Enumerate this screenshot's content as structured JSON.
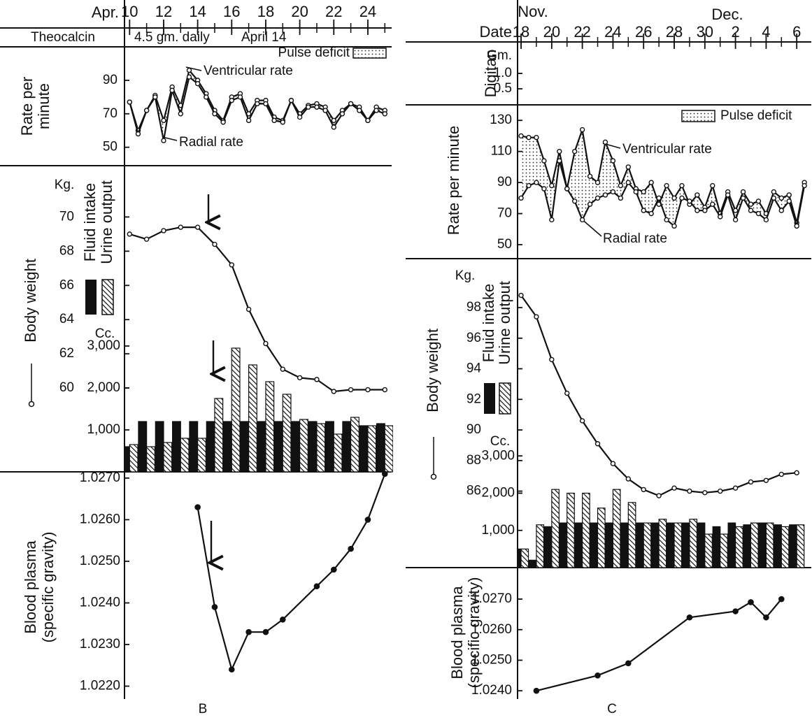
{
  "chart_data": [
    {
      "type": "panel",
      "label": "B",
      "x_title": "Apr.",
      "xlim": [
        9.7,
        25.4
      ],
      "xticks": [
        10,
        12,
        14,
        16,
        18,
        20,
        22,
        24
      ],
      "treatment": {
        "title": "Theocalcin",
        "dose": "4.5 gm. daily",
        "start": "April 14"
      },
      "rate": {
        "type": "line",
        "title": [
          "Rate per",
          "minute"
        ],
        "ylim": [
          39,
          110
        ],
        "yticks": [
          50,
          70,
          90
        ],
        "legend": "Pulse deficit",
        "x": [
          10,
          10.5,
          11,
          11.5,
          12,
          12.5,
          13,
          13.5,
          14,
          14.5,
          15,
          15.5,
          16,
          16.5,
          17,
          17.5,
          18,
          18.5,
          19,
          19.5,
          20,
          20.5,
          21,
          21.5,
          22,
          22.5,
          23,
          23.5,
          24,
          24.5,
          25
        ],
        "series": [
          {
            "name": "Ventricular rate",
            "color": "#111111",
            "values": [
              77,
              60,
              72,
              81,
              66,
              86,
              75,
              96,
              90,
              82,
              72,
              66,
              80,
              82,
              70,
              78,
              78,
              68,
              66,
              78,
              70,
              75,
              76,
              74,
              66,
              72,
              76,
              74,
              66,
              74,
              72
            ]
          },
          {
            "name": "Radial rate",
            "color": "#111111",
            "values": [
              77,
              58,
              72,
              80,
              54,
              84,
              70,
              92,
              88,
              80,
              70,
              65,
              78,
              80,
              66,
              76,
              76,
              66,
              65,
              78,
              68,
              74,
              74,
              72,
              62,
              70,
              76,
              72,
              66,
              72,
              70
            ]
          }
        ]
      },
      "weight": {
        "type": "line",
        "title": "Body weight",
        "unit": "Kg.",
        "ylim": [
          55.1,
          73
        ],
        "yticks": [
          60,
          62,
          64,
          66,
          68,
          70
        ],
        "color": "#111111",
        "marker": "open",
        "x": [
          10,
          11,
          12,
          13,
          14,
          15,
          16,
          17,
          18,
          19,
          20,
          21,
          22,
          23,
          24,
          25
        ],
        "values": [
          69.0,
          68.7,
          69.2,
          69.4,
          69.4,
          68.4,
          67.2,
          64.6,
          62.6,
          61.1,
          60.6,
          60.5,
          59.8,
          59.9,
          59.9,
          59.9
        ]
      },
      "fluid": {
        "type": "bar",
        "unit": "Cc.",
        "ylim": [
          0,
          7300
        ],
        "yticks": [
          {
            "value": 1000,
            "label": "1,000"
          },
          {
            "value": 2000,
            "label": "2,000"
          },
          {
            "value": 3000,
            "label": "3,000"
          }
        ],
        "x": [
          10,
          11,
          12,
          13,
          14,
          15,
          16,
          17,
          18,
          19,
          20,
          21,
          22,
          23,
          24,
          25
        ],
        "series": [
          {
            "name": "Fluid intake",
            "color": "#111111",
            "pattern": "solid",
            "values": [
              600,
              1200,
              1200,
              1200,
              1200,
              1200,
              1200,
              1200,
              1200,
              1200,
              1200,
              1200,
              1200,
              1200,
              1100,
              1150
            ]
          },
          {
            "name": "Urine output",
            "color": "#111111",
            "pattern": "hatch",
            "values": [
              650,
              600,
              700,
              800,
              800,
              1750,
              2950,
              2550,
              2150,
              1850,
              1250,
              1150,
              900,
              1300,
              1100,
              1100
            ]
          }
        ]
      },
      "plasma": {
        "type": "line",
        "title": [
          "Blood plasma",
          "(specific gravity)"
        ],
        "ylim": [
          1.02169,
          1.02715
        ],
        "color": "#111111",
        "marker": "filled",
        "yticks": [
          {
            "value": 1.022,
            "label": "1.0220"
          },
          {
            "value": 1.023,
            "label": "1.0230"
          },
          {
            "value": 1.024,
            "label": "1.0240"
          },
          {
            "value": 1.025,
            "label": "1.0250"
          },
          {
            "value": 1.026,
            "label": "1.0260"
          },
          {
            "value": 1.027,
            "label": "1.0270"
          }
        ],
        "x": [
          14,
          15,
          16,
          17,
          18,
          19,
          21,
          22,
          23,
          24,
          25
        ],
        "values": [
          1.0263,
          1.0239,
          1.0224,
          1.0233,
          1.0233,
          1.0236,
          1.0244,
          1.0248,
          1.0253,
          1.026,
          1.0271
        ]
      }
    },
    {
      "type": "panel",
      "label": "C",
      "x_title": [
        "Nov.",
        "Dec."
      ],
      "date_label": "Date",
      "xlim": [
        -0.23,
        18.95
      ],
      "xticks": [
        {
          "value": 0,
          "label": "18"
        },
        {
          "value": 2,
          "label": "20"
        },
        {
          "value": 4,
          "label": "22"
        },
        {
          "value": 6,
          "label": "24"
        },
        {
          "value": 8,
          "label": "26"
        },
        {
          "value": 10,
          "label": "28"
        },
        {
          "value": 12,
          "label": "30"
        },
        {
          "value": 14,
          "label": "2"
        },
        {
          "value": 16,
          "label": "4"
        },
        {
          "value": 18,
          "label": "6"
        }
      ],
      "digitan": {
        "title": "Digitan",
        "unit": "Gm.",
        "ylim": [
          -0.02,
          2.02
        ],
        "yticks": [
          0.5,
          {
            "value": 1,
            "label": "1.0"
          }
        ]
      },
      "rate": {
        "type": "line",
        "title": "Rate per minute",
        "ylim": [
          41,
          140
        ],
        "yticks": [
          50,
          70,
          90,
          110,
          130
        ],
        "legend": "Pulse deficit",
        "x": [
          0,
          0.5,
          1,
          1.5,
          2,
          2.5,
          3,
          3.5,
          4,
          4.5,
          5,
          5.5,
          6,
          6.5,
          7,
          7.5,
          8,
          8.5,
          9,
          9.5,
          10,
          10.5,
          11,
          11.5,
          12,
          12.5,
          13,
          13.5,
          14,
          14.5,
          15,
          15.5,
          16,
          16.5,
          17,
          17.5,
          18,
          18.5
        ],
        "series": [
          {
            "name": "Ventricular rate",
            "color": "#111111",
            "values": [
              120,
              119,
              119,
              104,
              88,
              110,
              86,
              110,
              124,
              94,
              90,
              116,
              104,
              88,
              100,
              86,
              84,
              90,
              76,
              88,
              80,
              88,
              76,
              82,
              74,
              88,
              70,
              84,
              72,
              84,
              76,
              78,
              70,
              84,
              80,
              82,
              64,
              90
            ]
          },
          {
            "name": "Radial rate",
            "color": "#111111",
            "values": [
              80,
              88,
              90,
              86,
              66,
              104,
              86,
              78,
              66,
              76,
              80,
              82,
              84,
              80,
              90,
              84,
              72,
              70,
              80,
              66,
              62,
              80,
              78,
              72,
              72,
              76,
              68,
              82,
              66,
              80,
              72,
              70,
              66,
              80,
              72,
              78,
              62,
              88
            ]
          }
        ]
      },
      "weight": {
        "type": "line",
        "title": "Body weight",
        "unit": "Kg.",
        "ylim": [
          81,
          101.2
        ],
        "yticks": [
          86,
          88,
          90,
          92,
          94,
          96,
          98
        ],
        "color": "#111111",
        "marker": "open",
        "x": [
          0,
          1,
          2,
          3,
          4,
          5,
          6,
          7,
          8,
          9,
          10,
          11,
          12,
          13,
          14,
          15,
          16,
          17,
          18
        ],
        "values": [
          98.8,
          97.4,
          94.6,
          92.4,
          90.6,
          89.1,
          87.8,
          86.8,
          86.1,
          85.7,
          86.2,
          86.0,
          85.9,
          86.0,
          86.2,
          86.6,
          86.7,
          87.1,
          87.2
        ]
      },
      "fluid": {
        "type": "bar",
        "unit": "Cc.",
        "ylim": [
          0,
          8300
        ],
        "yticks": [
          {
            "value": 1000,
            "label": "1,000"
          },
          {
            "value": 2000,
            "label": "2,000"
          },
          {
            "value": 3000,
            "label": "3,000"
          }
        ],
        "x": [
          0,
          1,
          2,
          3,
          4,
          5,
          6,
          7,
          8,
          9,
          10,
          11,
          12,
          13,
          14,
          15,
          16,
          17,
          18
        ],
        "series": [
          {
            "name": "Fluid intake",
            "color": "#111111",
            "pattern": "solid",
            "values": [
              500,
              200,
              1100,
              1200,
              1200,
              1200,
              1200,
              1200,
              1200,
              1200,
              1200,
              1200,
              1200,
              1100,
              1200,
              1150,
              1200,
              1150,
              1150
            ]
          },
          {
            "name": "Urine output",
            "color": "#111111",
            "pattern": "hatch",
            "values": [
              500,
              1150,
              2100,
              2000,
              2000,
              1600,
              2100,
              1750,
              1200,
              1300,
              1200,
              1300,
              900,
              900,
              1100,
              1200,
              1200,
              1100,
              1150
            ]
          }
        ]
      },
      "plasma": {
        "type": "line",
        "title": [
          "Blood plasma",
          "(specific gravity)"
        ],
        "ylim": [
          1.02373,
          1.02803
        ],
        "color": "#111111",
        "marker": "filled",
        "yticks": [
          {
            "value": 1.024,
            "label": "1.0240"
          },
          {
            "value": 1.025,
            "label": "1.0250"
          },
          {
            "value": 1.026,
            "label": "1.0260"
          },
          {
            "value": 1.027,
            "label": "1.0270"
          }
        ],
        "x": [
          1,
          5,
          7,
          11,
          14,
          15,
          16,
          17
        ],
        "values": [
          1.024,
          1.0245,
          1.0249,
          1.0264,
          1.0266,
          1.0269,
          1.0264,
          1.027
        ]
      }
    }
  ]
}
